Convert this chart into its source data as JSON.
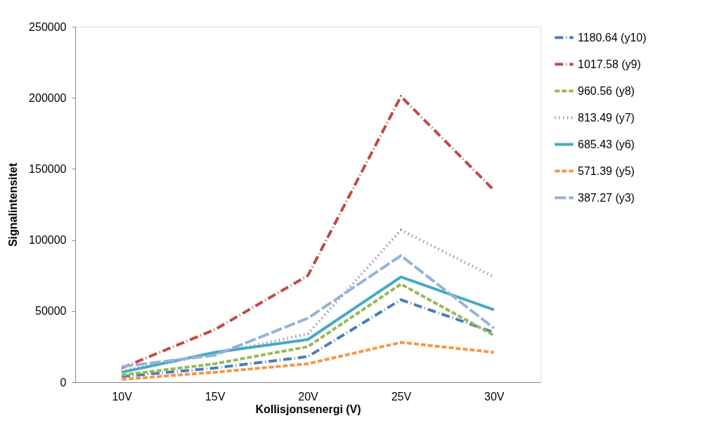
{
  "chart_data": {
    "type": "line",
    "xlabel": "Kollisjonsenergi (V)",
    "ylabel": "Signalintensitet",
    "categories": [
      "10V",
      "15V",
      "20V",
      "25V",
      "30V"
    ],
    "ylim": [
      0,
      250000
    ],
    "yticks": [
      0,
      50000,
      100000,
      150000,
      200000,
      250000
    ],
    "grid": false,
    "legend": "right",
    "marker": "none",
    "series": [
      {
        "name": "1180.64 (y10)",
        "color": "#4a7ebb",
        "line_style": "dashdot",
        "values": [
          4000,
          10000,
          18000,
          58000,
          35000
        ]
      },
      {
        "name": "1017.58 (y9)",
        "color": "#be4b48",
        "line_style": "dashdot",
        "values": [
          10000,
          37000,
          75000,
          201000,
          135000
        ]
      },
      {
        "name": "960.56 (y8)",
        "color": "#98b954",
        "line_style": "dashed",
        "values": [
          5000,
          13000,
          25000,
          69000,
          33000
        ]
      },
      {
        "name": "813.49 (y7)",
        "color": "#7d60a0",
        "line_style": "dotted",
        "values": [
          8000,
          20000,
          34000,
          107000,
          74000
        ]
      },
      {
        "name": "685.43 (y6)",
        "color": "#46aac5",
        "line_style": "solid",
        "values": [
          7000,
          21000,
          30000,
          74000,
          51000
        ]
      },
      {
        "name": "571.39 (y5)",
        "color": "#f79646",
        "line_style": "dashed",
        "values": [
          2000,
          7000,
          13000,
          28000,
          21000
        ]
      },
      {
        "name": "387.27 (y3)",
        "color": "#95b3d7",
        "line_style": "longdash",
        "values": [
          11000,
          19000,
          45000,
          89000,
          38000
        ]
      }
    ]
  }
}
